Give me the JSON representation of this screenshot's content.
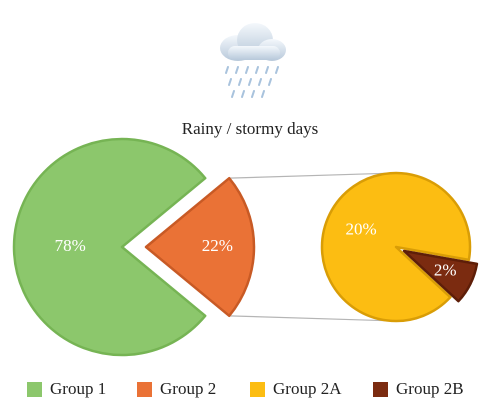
{
  "chart_data": {
    "type": "pie",
    "title": "Rainy / stormy days",
    "icon": "rain-cloud-icon",
    "main_pie": {
      "slices": [
        {
          "name": "Group 1",
          "value": 78,
          "label": "78%",
          "color": "#8cc76c",
          "stroke": "#76b454"
        },
        {
          "name": "Group 2",
          "value": 22,
          "label": "22%",
          "color": "#ea7236",
          "stroke": "#c85a25",
          "exploded": true
        }
      ]
    },
    "breakdown_pie": {
      "of": "Group 2",
      "slices": [
        {
          "name": "Group 2A",
          "value": 20,
          "label": "20%",
          "color": "#fcbd12",
          "stroke": "#d99d06"
        },
        {
          "name": "Group 2B",
          "value": 2,
          "label": "2%",
          "color": "#7b2b10",
          "stroke": "#5e1e08",
          "exploded": true
        }
      ]
    },
    "legend": {
      "placement": "bottom",
      "items": [
        {
          "label": "Group 1",
          "color": "#8cc76c"
        },
        {
          "label": "Group 2",
          "color": "#ea7236"
        },
        {
          "label": "Group 2A",
          "color": "#fcbd12"
        },
        {
          "label": "Group 2B",
          "color": "#7b2b10"
        }
      ]
    }
  }
}
